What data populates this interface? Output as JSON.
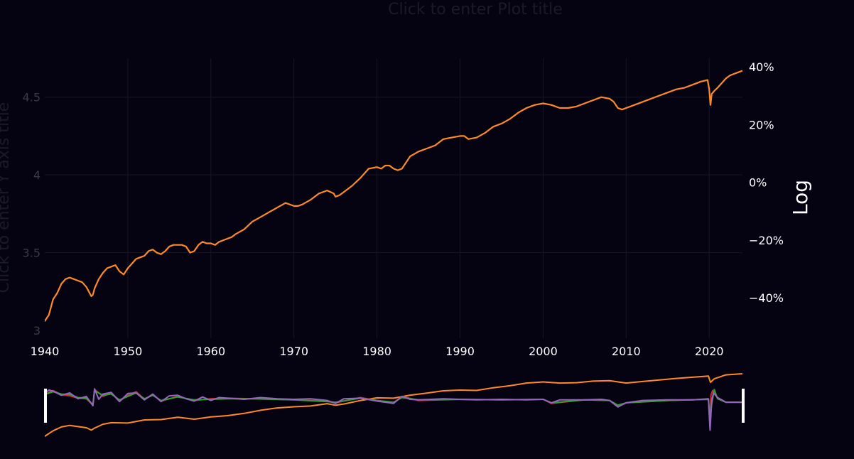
{
  "placeholders": {
    "plot_title": "Click to enter Plot title",
    "y_axis_title": "Click to enter Y axis title"
  },
  "colors": {
    "background": "#050312",
    "grid": "#161624",
    "left_tick": "#3a3a48",
    "right_tick": "#ffffff",
    "x_tick": "#ffffff",
    "main_series": "#ff8a24",
    "series_red": "#d62728",
    "series_green": "#2ca02c",
    "series_purple": "#9467bd",
    "handle": "#ffffff"
  },
  "chart_data": {
    "type": "line",
    "title": "",
    "y2label": "Log",
    "xlim": [
      1940,
      2024
    ],
    "ylim": [
      2.95,
      4.75
    ],
    "y2lim": [
      -54,
      43
    ],
    "x_ticks": [
      {
        "value": 1940,
        "label": "1940"
      },
      {
        "value": 1950,
        "label": "1950"
      },
      {
        "value": 1960,
        "label": "1960"
      },
      {
        "value": 1970,
        "label": "1970"
      },
      {
        "value": 1980,
        "label": "1980"
      },
      {
        "value": 1990,
        "label": "1990"
      },
      {
        "value": 2000,
        "label": "2000"
      },
      {
        "value": 2010,
        "label": "2010"
      },
      {
        "value": 2020,
        "label": "2020"
      }
    ],
    "y_ticks": [
      {
        "value": 3,
        "label": "3"
      },
      {
        "value": 3.5,
        "label": "3.5"
      },
      {
        "value": 4,
        "label": "4"
      },
      {
        "value": 4.5,
        "label": "4.5"
      }
    ],
    "y2_ticks": [
      {
        "value": -40,
        "label": "−40%"
      },
      {
        "value": -20,
        "label": "−20%"
      },
      {
        "value": 0,
        "label": "0%"
      },
      {
        "value": 20,
        "label": "20%"
      },
      {
        "value": 40,
        "label": "40%"
      }
    ],
    "series": [
      {
        "color": "#ff8a24",
        "axis": "y",
        "x": [
          1939.5,
          1940,
          1940.5,
          1941,
          1941.5,
          1942,
          1942.5,
          1943,
          1943.5,
          1944,
          1944.5,
          1945,
          1945.3,
          1945.6,
          1945.8,
          1946,
          1946.5,
          1947,
          1947.5,
          1948,
          1948.5,
          1949,
          1949.5,
          1950,
          1950.5,
          1951,
          1951.5,
          1952,
          1952.5,
          1953,
          1953.5,
          1954,
          1954.5,
          1955,
          1955.5,
          1956,
          1956.5,
          1957,
          1957.5,
          1958,
          1958.5,
          1959,
          1959.5,
          1960,
          1960.5,
          1961,
          1961.5,
          1962,
          1962.5,
          1963,
          1964,
          1965,
          1966,
          1967,
          1968,
          1969,
          1970,
          1970.5,
          1971,
          1972,
          1973,
          1974,
          1974.8,
          1975,
          1975.5,
          1976,
          1977,
          1978,
          1979,
          1980,
          1980.5,
          1981,
          1981.5,
          1982,
          1982.5,
          1983,
          1983.5,
          1984,
          1985,
          1986,
          1987,
          1988,
          1989,
          1990,
          1990.5,
          1991,
          1992,
          1993,
          1994,
          1995,
          1996,
          1997,
          1998,
          1999,
          2000,
          2001,
          2002,
          2003,
          2004,
          2005,
          2006,
          2007,
          2008,
          2008.5,
          2009,
          2009.5,
          2010,
          2011,
          2012,
          2013,
          2014,
          2015,
          2016,
          2017,
          2018,
          2019,
          2019.8,
          2020.0,
          2020.15,
          2020.3,
          2020.6,
          2021,
          2021.5,
          2022,
          2022.5,
          2023,
          2023.5,
          2024
        ],
        "y": [
          3.06,
          3.06,
          3.1,
          3.2,
          3.24,
          3.3,
          3.33,
          3.34,
          3.33,
          3.32,
          3.31,
          3.28,
          3.25,
          3.22,
          3.23,
          3.27,
          3.33,
          3.37,
          3.4,
          3.41,
          3.42,
          3.38,
          3.36,
          3.4,
          3.43,
          3.46,
          3.47,
          3.48,
          3.51,
          3.52,
          3.5,
          3.49,
          3.51,
          3.54,
          3.55,
          3.55,
          3.55,
          3.54,
          3.5,
          3.51,
          3.55,
          3.57,
          3.56,
          3.56,
          3.55,
          3.57,
          3.58,
          3.59,
          3.6,
          3.62,
          3.65,
          3.7,
          3.73,
          3.76,
          3.79,
          3.82,
          3.8,
          3.8,
          3.81,
          3.84,
          3.88,
          3.9,
          3.88,
          3.86,
          3.87,
          3.89,
          3.93,
          3.98,
          4.04,
          4.05,
          4.04,
          4.06,
          4.06,
          4.04,
          4.03,
          4.04,
          4.08,
          4.12,
          4.15,
          4.17,
          4.19,
          4.23,
          4.24,
          4.25,
          4.25,
          4.23,
          4.24,
          4.27,
          4.31,
          4.33,
          4.36,
          4.4,
          4.43,
          4.45,
          4.46,
          4.45,
          4.43,
          4.43,
          4.44,
          4.46,
          4.48,
          4.5,
          4.49,
          4.47,
          4.43,
          4.42,
          4.43,
          4.45,
          4.47,
          4.49,
          4.51,
          4.53,
          4.55,
          4.56,
          4.58,
          4.6,
          4.61,
          4.55,
          4.45,
          4.52,
          4.54,
          4.56,
          4.59,
          4.62,
          4.64,
          4.65,
          4.66,
          4.67
        ]
      }
    ],
    "rangeslider": {
      "x_range": [
        1940,
        2024
      ],
      "series": [
        {
          "color": "#ff8a24",
          "x": [
            1939.5,
            1940,
            1941,
            1942,
            1943,
            1945,
            1945.6,
            1946,
            1947,
            1948,
            1950,
            1952,
            1954,
            1956,
            1958,
            1960,
            1962,
            1964,
            1966,
            1968,
            1970,
            1972,
            1974,
            1975,
            1976,
            1978,
            1980,
            1982,
            1984,
            1986,
            1988,
            1990,
            1992,
            1994,
            1996,
            1998,
            2000,
            2002,
            2004,
            2006,
            2008,
            2010,
            2012,
            2014,
            2016,
            2018,
            2019.9,
            2020.15,
            2020.6,
            2022,
            2024
          ],
          "y": [
            3.06,
            3.06,
            3.2,
            3.3,
            3.34,
            3.28,
            3.22,
            3.27,
            3.37,
            3.41,
            3.4,
            3.48,
            3.49,
            3.55,
            3.5,
            3.56,
            3.59,
            3.65,
            3.73,
            3.79,
            3.82,
            3.84,
            3.9,
            3.86,
            3.89,
            3.98,
            4.05,
            4.04,
            4.12,
            4.17,
            4.23,
            4.25,
            4.24,
            4.31,
            4.36,
            4.43,
            4.46,
            4.43,
            4.44,
            4.48,
            4.49,
            4.43,
            4.47,
            4.51,
            4.55,
            4.58,
            4.61,
            4.45,
            4.54,
            4.64,
            4.67
          ]
        },
        {
          "color": "#d62728",
          "x": [
            1939.5,
            1941,
            1942,
            1943,
            1944,
            1945,
            1945.8,
            1946,
            1947,
            1948,
            1949,
            1950,
            1951,
            1952,
            1953,
            1954,
            1956,
            1958,
            1960,
            1962,
            1965,
            1970,
            1974,
            1975,
            1978,
            1980,
            1982,
            1983,
            1985,
            1990,
            1995,
            2000,
            2001,
            2005,
            2008,
            2009,
            2010,
            2015,
            2019.9,
            2020.1,
            2020.2,
            2020.4,
            2021,
            2022,
            2024
          ],
          "y": [
            2.0,
            3.0,
            2.3,
            2.1,
            1.7,
            1.6,
            0.5,
            3.2,
            2.0,
            2.6,
            1.2,
            2.2,
            2.8,
            1.5,
            2.3,
            1.2,
            2.0,
            1.3,
            1.6,
            1.7,
            1.6,
            1.4,
            1.2,
            0.9,
            1.8,
            1.3,
            0.9,
            2.0,
            1.3,
            1.5,
            1.4,
            1.5,
            0.8,
            1.4,
            1.3,
            0.3,
            0.9,
            1.3,
            1.5,
            -3.2,
            2.2,
            3.0,
            1.8,
            1.0,
            1.0
          ]
        },
        {
          "color": "#2ca02c",
          "x": [
            1939.5,
            1941,
            1942,
            1943,
            1944,
            1945,
            1945.8,
            1946,
            1947,
            1948,
            1949,
            1950,
            1951,
            1952,
            1953,
            1954,
            1956,
            1958,
            1960,
            1962,
            1965,
            1970,
            1974,
            1975,
            1978,
            1980,
            1982,
            1983,
            1985,
            1990,
            1995,
            2000,
            2001,
            2005,
            2008,
            2009,
            2010,
            2015,
            2019.9,
            2020.1,
            2020.3,
            2020.6,
            2021,
            2022,
            2024
          ],
          "y": [
            2.1,
            2.8,
            2.4,
            2.3,
            1.8,
            1.7,
            0.6,
            3.0,
            2.2,
            2.4,
            1.4,
            2.0,
            2.6,
            1.6,
            2.2,
            1.3,
            1.9,
            1.4,
            1.5,
            1.6,
            1.6,
            1.4,
            1.1,
            1.0,
            1.7,
            1.3,
            1.0,
            1.8,
            1.4,
            1.5,
            1.4,
            1.5,
            0.9,
            1.4,
            1.3,
            0.5,
            0.9,
            1.3,
            1.5,
            -1.5,
            0.6,
            3.2,
            1.6,
            1.0,
            1.0
          ]
        },
        {
          "color": "#9467bd",
          "x": [
            1939.5,
            1940.5,
            1941,
            1942,
            1943,
            1944,
            1945,
            1945.8,
            1946,
            1946.5,
            1947,
            1948,
            1949,
            1950,
            1951,
            1952,
            1953,
            1954,
            1955,
            1956,
            1957,
            1958,
            1959,
            1960,
            1961,
            1962,
            1964,
            1966,
            1968,
            1970,
            1972,
            1974,
            1975,
            1976,
            1978,
            1980,
            1982,
            1983,
            1984,
            1985,
            1988,
            1990,
            1992,
            1995,
            1998,
            2000,
            2001,
            2002,
            2005,
            2007,
            2008,
            2009,
            2010,
            2012,
            2015,
            2018,
            2019.9,
            2020.1,
            2020.3,
            2020.5,
            2021,
            2022,
            2024
          ],
          "y": [
            1.9,
            3.1,
            2.9,
            2.2,
            2.6,
            1.6,
            2.0,
            0.4,
            3.3,
            1.5,
            2.4,
            2.7,
            1.1,
            2.5,
            2.6,
            1.4,
            2.4,
            1.1,
            2.1,
            2.2,
            1.6,
            1.2,
            1.9,
            1.3,
            1.8,
            1.7,
            1.5,
            1.8,
            1.6,
            1.5,
            1.6,
            1.3,
            0.8,
            1.6,
            1.7,
            1.2,
            0.8,
            2.0,
            1.5,
            1.4,
            1.6,
            1.5,
            1.4,
            1.5,
            1.4,
            1.5,
            0.9,
            1.4,
            1.4,
            1.5,
            1.3,
            0.2,
            0.9,
            1.3,
            1.4,
            1.4,
            1.6,
            -3.8,
            1.2,
            2.6,
            1.8,
            1.0,
            1.0
          ]
        }
      ]
    }
  }
}
